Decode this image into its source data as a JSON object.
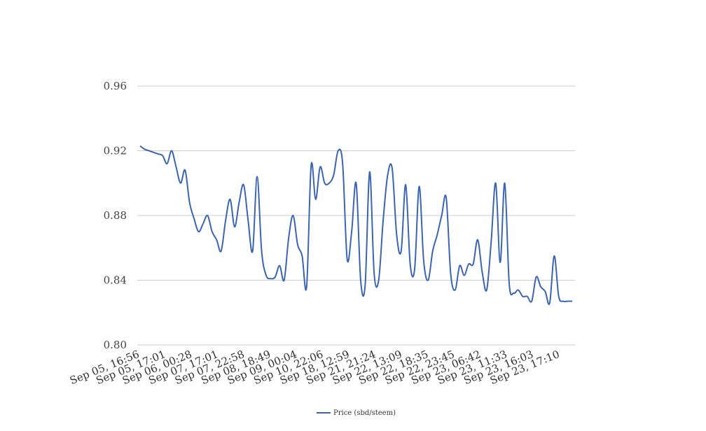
{
  "chart_data": {
    "type": "line",
    "title": "",
    "xlabel": "",
    "ylabel": "",
    "ylim": [
      0.8,
      0.96
    ],
    "yticks": [
      "0.80",
      "0.84",
      "0.88",
      "0.92",
      "0.96"
    ],
    "grid": true,
    "legend_position": "bottom",
    "x_tick_labels": [
      "Sep 05, 16:56",
      "Sep 05, 17:01",
      "Sep 06, 00:28",
      "Sep 07, 17:01",
      "Sep 07, 22:58",
      "Sep 08, 18:49",
      "Sep 09, 00:04",
      "Sep 10, 22:06",
      "Sep 18, 12:59",
      "Sep 21, 21:24",
      "Sep 22, 13:09",
      "Sep 22, 18:35",
      "Sep 22, 23:45",
      "Sep 23, 06:42",
      "Sep 23, 11:33",
      "Sep 23, 16:03",
      "Sep 23, 17:10"
    ],
    "series": [
      {
        "name": "Price (sbd/steem)",
        "color": "#3a64b4",
        "values": [
          0.923,
          0.921,
          0.92,
          0.919,
          0.918,
          0.917,
          0.912,
          0.92,
          0.91,
          0.9,
          0.908,
          0.888,
          0.878,
          0.87,
          0.875,
          0.88,
          0.87,
          0.865,
          0.858,
          0.877,
          0.89,
          0.873,
          0.888,
          0.899,
          0.877,
          0.858,
          0.904,
          0.858,
          0.843,
          0.841,
          0.842,
          0.849,
          0.84,
          0.866,
          0.88,
          0.862,
          0.855,
          0.836,
          0.911,
          0.89,
          0.91,
          0.9,
          0.9,
          0.905,
          0.92,
          0.912,
          0.853,
          0.87,
          0.9,
          0.84,
          0.837,
          0.907,
          0.844,
          0.84,
          0.877,
          0.905,
          0.909,
          0.868,
          0.858,
          0.899,
          0.85,
          0.847,
          0.898,
          0.852,
          0.84,
          0.858,
          0.868,
          0.88,
          0.891,
          0.844,
          0.834,
          0.849,
          0.843,
          0.85,
          0.85,
          0.865,
          0.845,
          0.834,
          0.864,
          0.9,
          0.851,
          0.9,
          0.838,
          0.832,
          0.834,
          0.83,
          0.83,
          0.827,
          0.842,
          0.836,
          0.833,
          0.826,
          0.855,
          0.83,
          0.827,
          0.827,
          0.827
        ]
      }
    ]
  }
}
